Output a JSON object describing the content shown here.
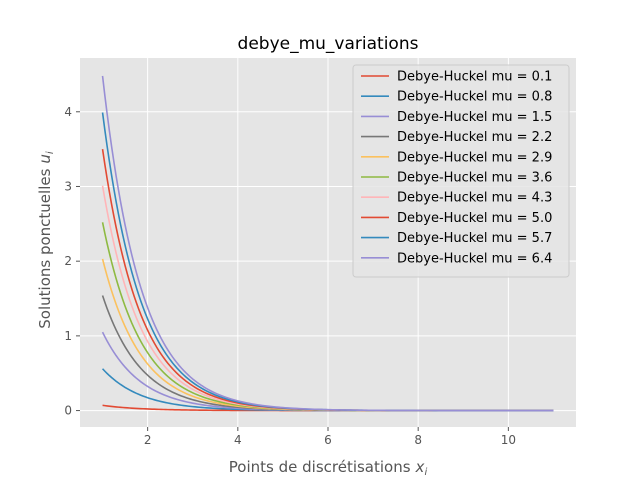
{
  "chart_data": {
    "type": "line",
    "title": "debye_mu_variations",
    "xlabel": "Points de discrétisations",
    "xlabel_sym": "x",
    "xlabel_sub": "i",
    "ylabel": "Solutions ponctuelles",
    "ylabel_sym": "u",
    "ylabel_sub": "i",
    "xlim": [
      0.5,
      11.5
    ],
    "ylim": [
      -0.22,
      4.72
    ],
    "xticks": [
      2,
      4,
      6,
      8,
      10
    ],
    "yticks": [
      0,
      1,
      2,
      3,
      4
    ],
    "grid": true,
    "legend": "top-right",
    "x_range": [
      1,
      11
    ],
    "decay_rate": 1.18,
    "series": [
      {
        "name": "Debye-Huckel mu = 0.1",
        "mu": 0.1,
        "y0": 0.07,
        "color": "#E24A33"
      },
      {
        "name": "Debye-Huckel mu = 0.8",
        "mu": 0.8,
        "y0": 0.56,
        "color": "#348ABD"
      },
      {
        "name": "Debye-Huckel mu = 1.5",
        "mu": 1.5,
        "y0": 1.05,
        "color": "#988ED5"
      },
      {
        "name": "Debye-Huckel mu = 2.2",
        "mu": 2.2,
        "y0": 1.54,
        "color": "#777777"
      },
      {
        "name": "Debye-Huckel mu = 2.9",
        "mu": 2.9,
        "y0": 2.03,
        "color": "#FBC15E"
      },
      {
        "name": "Debye-Huckel mu = 3.6",
        "mu": 3.6,
        "y0": 2.52,
        "color": "#8EBA42"
      },
      {
        "name": "Debye-Huckel mu = 4.3",
        "mu": 4.3,
        "y0": 3.01,
        "color": "#FFB5B8"
      },
      {
        "name": "Debye-Huckel mu = 5.0",
        "mu": 5.0,
        "y0": 3.5,
        "color": "#E24A33"
      },
      {
        "name": "Debye-Huckel mu = 5.7",
        "mu": 5.7,
        "y0": 3.99,
        "color": "#348ABD"
      },
      {
        "name": "Debye-Huckel mu = 6.4",
        "mu": 6.4,
        "y0": 4.48,
        "color": "#988ED5"
      }
    ]
  }
}
